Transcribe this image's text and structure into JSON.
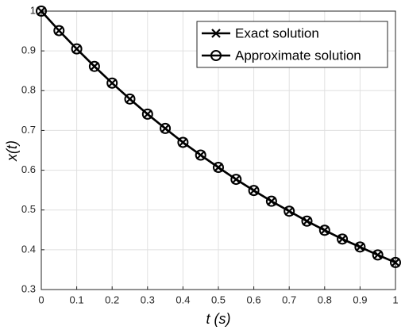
{
  "chart_data": {
    "type": "line",
    "xlabel": "t (s)",
    "ylabel": "x(t)",
    "x": [
      0,
      0.05,
      0.1,
      0.15,
      0.2,
      0.25,
      0.3,
      0.35,
      0.4,
      0.45,
      0.5,
      0.55,
      0.6,
      0.65,
      0.7,
      0.75,
      0.8,
      0.85,
      0.9,
      0.95,
      1
    ],
    "series": [
      {
        "name": "Exact solution",
        "color": "#000000",
        "marker": "x",
        "values": [
          1,
          0.951,
          0.905,
          0.861,
          0.819,
          0.779,
          0.741,
          0.705,
          0.67,
          0.638,
          0.607,
          0.577,
          0.549,
          0.522,
          0.497,
          0.472,
          0.449,
          0.427,
          0.407,
          0.387,
          0.368
        ]
      },
      {
        "name": "Approximate solution",
        "color": "#000000",
        "marker": "o",
        "values": [
          1,
          0.951,
          0.905,
          0.861,
          0.819,
          0.779,
          0.741,
          0.705,
          0.67,
          0.638,
          0.607,
          0.577,
          0.549,
          0.522,
          0.497,
          0.472,
          0.449,
          0.427,
          0.407,
          0.387,
          0.368
        ]
      }
    ],
    "xlim": [
      0,
      1
    ],
    "xticks": [
      0,
      0.1,
      0.2,
      0.3,
      0.4,
      0.5,
      0.6,
      0.7,
      0.8,
      0.9,
      1
    ],
    "ylim": [
      0.3,
      1
    ],
    "yticks": [
      0.3,
      0.4,
      0.5,
      0.6,
      0.7,
      0.8,
      0.9,
      1
    ],
    "grid": true,
    "legend": "upper right"
  }
}
